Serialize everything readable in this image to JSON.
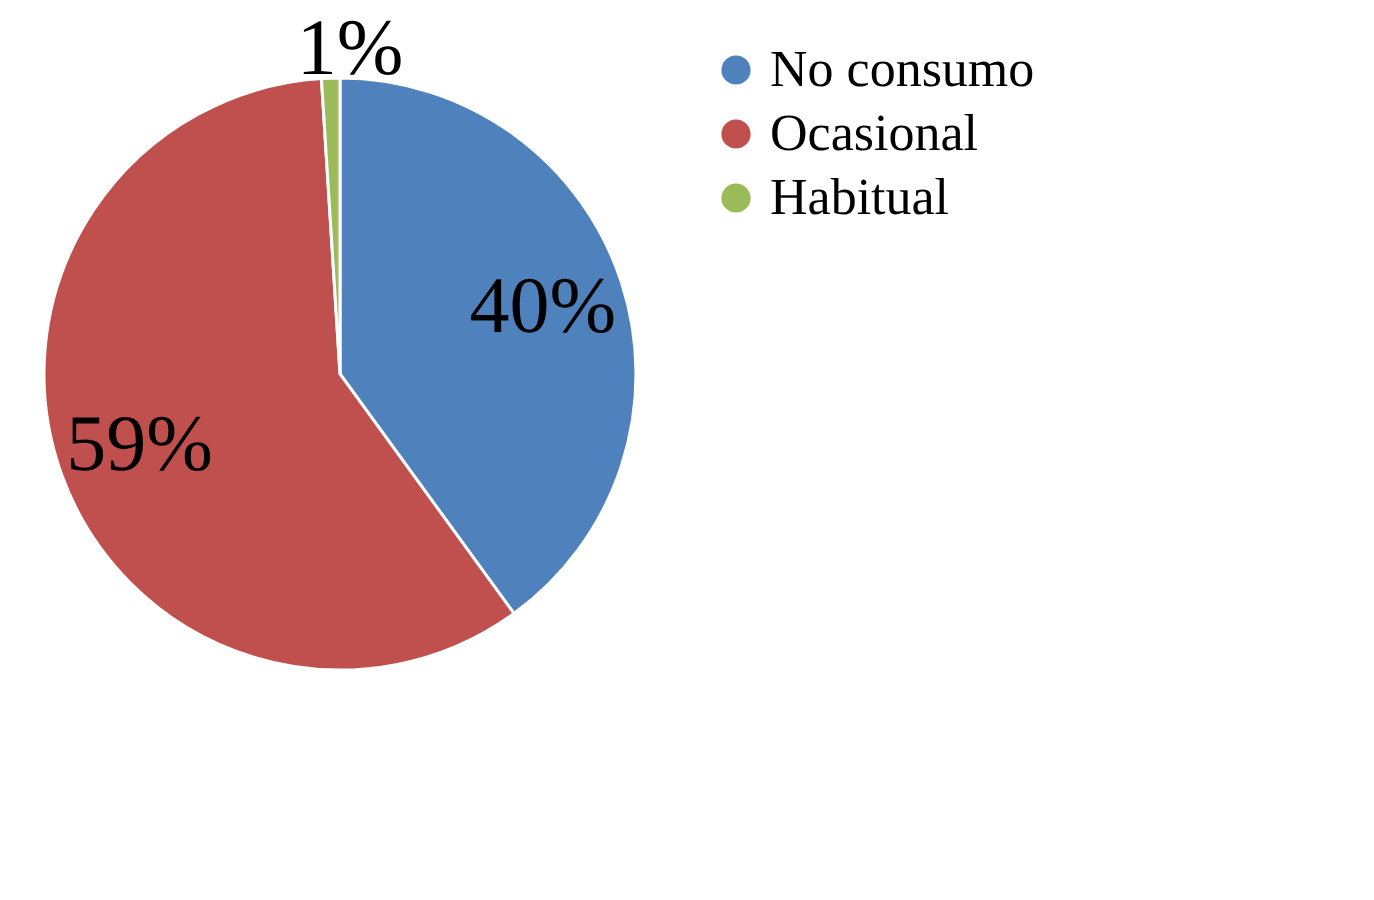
{
  "chart_data": {
    "type": "pie",
    "categories": [
      "No consumo",
      "Ocasional",
      "Habitual"
    ],
    "values": [
      40,
      59,
      1
    ],
    "colors": [
      "#4f81bd",
      "#c0504d",
      "#9bbb59"
    ],
    "value_labels": [
      "40%",
      "59%",
      "1%"
    ],
    "legend": "right"
  }
}
